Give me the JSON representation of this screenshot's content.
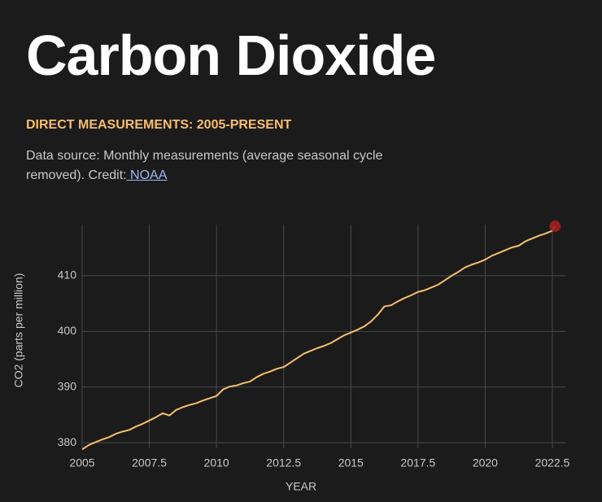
{
  "chart_data": {
    "type": "line",
    "title": "Carbon Dioxide",
    "subtitle": "DIRECT MEASUREMENTS: 2005-PRESENT",
    "source_text": "Data source: Monthly measurements (average seasonal cycle removed). Credit:",
    "source_link": " NOAA",
    "xlabel": "YEAR",
    "ylabel": "CO2 (parts per million)",
    "color": "#f5bf6e",
    "marker_color": "#a11f1f",
    "grid": true,
    "xlim": [
      2005,
      2023
    ],
    "ylim": [
      379,
      419.2
    ],
    "xticks": [
      2005,
      2007.5,
      2010,
      2012.5,
      2015,
      2017.5,
      2020,
      2022.5
    ],
    "yticks": [
      380,
      390,
      400,
      410
    ],
    "x": [
      2005.0,
      2005.25,
      2005.5,
      2005.75,
      2006.0,
      2006.25,
      2006.5,
      2006.75,
      2007.0,
      2007.25,
      2007.5,
      2007.75,
      2008.0,
      2008.25,
      2008.5,
      2008.75,
      2009.0,
      2009.25,
      2009.5,
      2009.75,
      2010.0,
      2010.25,
      2010.5,
      2010.75,
      2011.0,
      2011.25,
      2011.5,
      2011.75,
      2012.0,
      2012.25,
      2012.5,
      2012.75,
      2013.0,
      2013.25,
      2013.5,
      2013.75,
      2014.0,
      2014.25,
      2014.5,
      2014.75,
      2015.0,
      2015.25,
      2015.5,
      2015.75,
      2016.0,
      2016.25,
      2016.5,
      2016.75,
      2017.0,
      2017.25,
      2017.5,
      2017.75,
      2018.0,
      2018.25,
      2018.5,
      2018.75,
      2019.0,
      2019.25,
      2019.5,
      2019.75,
      2020.0,
      2020.25,
      2020.5,
      2020.75,
      2021.0,
      2021.25,
      2021.5,
      2021.75,
      2022.0,
      2022.25,
      2022.5,
      2022.6
    ],
    "values": [
      378.8,
      379.6,
      380.1,
      380.6,
      381.0,
      381.6,
      382.0,
      382.3,
      382.9,
      383.4,
      384.0,
      384.6,
      385.3,
      384.9,
      385.9,
      386.4,
      386.8,
      387.1,
      387.6,
      388.0,
      388.4,
      389.6,
      390.1,
      390.3,
      390.7,
      391.0,
      391.8,
      392.4,
      392.8,
      393.3,
      393.6,
      394.4,
      395.2,
      396.0,
      396.5,
      397.0,
      397.4,
      397.9,
      398.6,
      399.3,
      399.8,
      400.3,
      400.9,
      401.8,
      403.0,
      404.5,
      404.7,
      405.4,
      406.0,
      406.5,
      407.1,
      407.4,
      407.9,
      408.4,
      409.2,
      410.0,
      410.7,
      411.5,
      412.0,
      412.4,
      412.9,
      413.6,
      414.1,
      414.6,
      415.1,
      415.4,
      416.2,
      416.7,
      417.2,
      417.6,
      418.1,
      418.9
    ]
  }
}
